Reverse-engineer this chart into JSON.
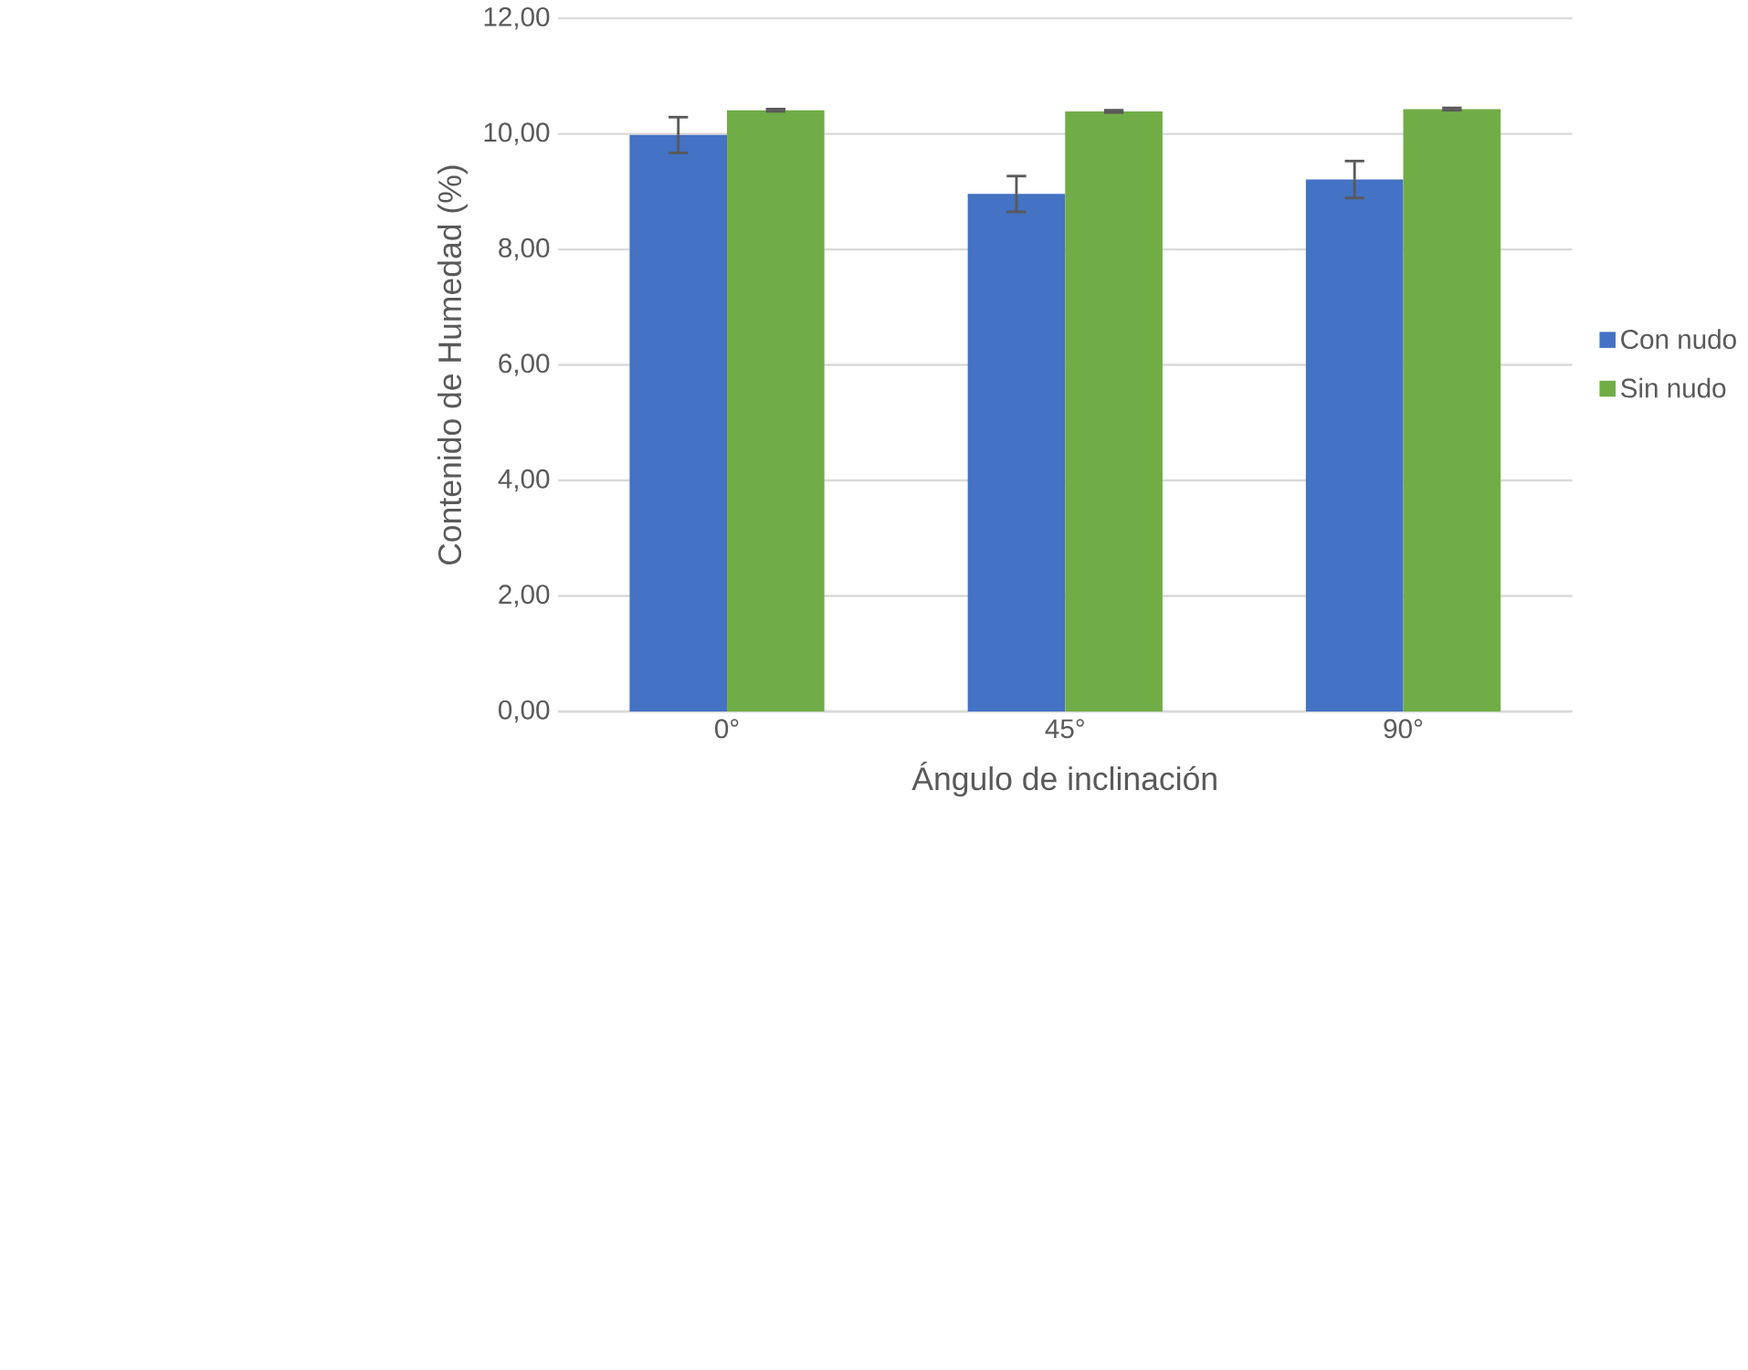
{
  "chart_data": {
    "type": "bar",
    "xlabel": "Ángulo de inclinación",
    "ylabel": "Contenido de Humedad (%)",
    "categories": [
      "0°",
      "45°",
      "90°"
    ],
    "series": [
      {
        "name": "Con nudo",
        "color": "#4472c4",
        "values": [
          9.98,
          8.96,
          9.21
        ],
        "errors": [
          0.31,
          0.31,
          0.32
        ]
      },
      {
        "name": "Sin nudo",
        "color": "#70ad47",
        "values": [
          10.41,
          10.39,
          10.43
        ],
        "errors": [
          0.02,
          0.02,
          0.02
        ]
      }
    ],
    "ylim": [
      0,
      12
    ],
    "yticks": [
      {
        "value": 0,
        "label": "0,00"
      },
      {
        "value": 2,
        "label": "2,00"
      },
      {
        "value": 4,
        "label": "4,00"
      },
      {
        "value": 6,
        "label": "6,00"
      },
      {
        "value": 8,
        "label": "8,00"
      },
      {
        "value": 10,
        "label": "10,00"
      },
      {
        "value": 12,
        "label": "12,00"
      }
    ],
    "grid": "y",
    "legend": "right"
  }
}
